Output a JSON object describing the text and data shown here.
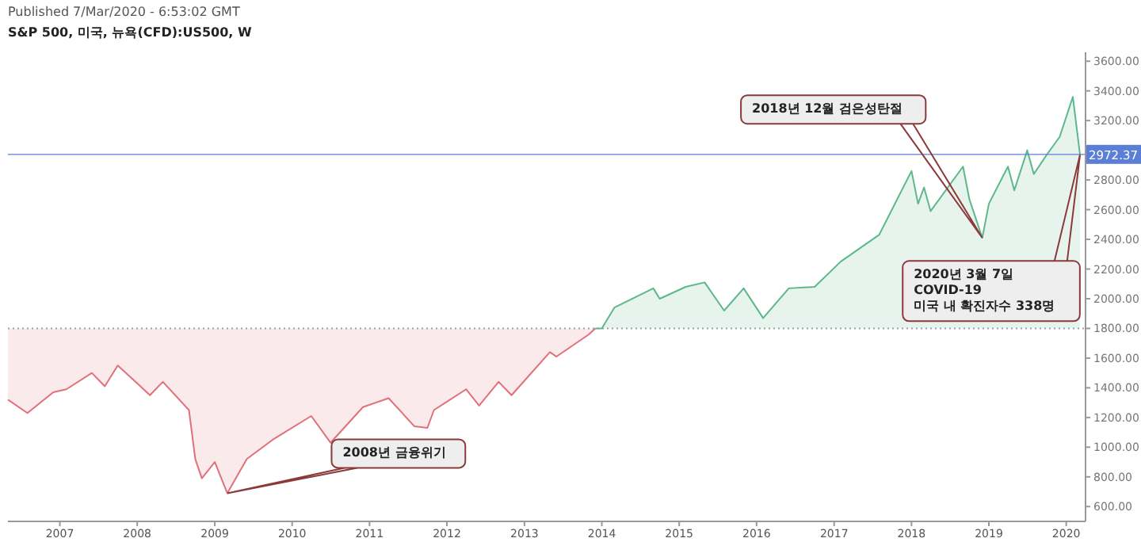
{
  "chart_data": {
    "type": "line",
    "title": "Published 7/Mar/2020 - 6:53:02 GMT",
    "subtitle": "S&P 500, 미국, 뉴욕(CFD):US500, W",
    "xlim": [
      "2006-05",
      "2020-04"
    ],
    "ylim": [
      500,
      3660
    ],
    "xticks": [
      "2007",
      "2008",
      "2009",
      "2010",
      "2011",
      "2012",
      "2013",
      "2014",
      "2015",
      "2016",
      "2017",
      "2018",
      "2019",
      "2020"
    ],
    "yticks": [
      {
        "value": 600,
        "label": "600.00"
      },
      {
        "value": 800,
        "label": "800.00"
      },
      {
        "value": 1000,
        "label": "1000.00"
      },
      {
        "value": 1200,
        "label": "1200.00"
      },
      {
        "value": 1400,
        "label": "1400.00"
      },
      {
        "value": 1600,
        "label": "1600.00"
      },
      {
        "value": 1800,
        "label": "1800.00"
      },
      {
        "value": 2000,
        "label": "2000.00"
      },
      {
        "value": 2200,
        "label": "2200.00"
      },
      {
        "value": 2400,
        "label": "2400.00"
      },
      {
        "value": 2600,
        "label": "2600.00"
      },
      {
        "value": 2800,
        "label": "2800.00"
      },
      {
        "value": 3200,
        "label": "3200.00"
      },
      {
        "value": 3400,
        "label": "3400.00"
      },
      {
        "value": 3600,
        "label": "3600.00"
      }
    ],
    "series": [
      {
        "color": "#e0707a",
        "x": [
          "2006-05",
          "2006-08",
          "2006-12",
          "2007-02",
          "2007-06",
          "2007-08",
          "2007-10",
          "2008-01",
          "2008-03",
          "2008-05",
          "2008-09",
          "2008-10",
          "2008-11",
          "2009-01",
          "2009-03",
          "2009-06",
          "2009-10",
          "2010-04",
          "2010-07",
          "2010-12",
          "2011-04",
          "2011-08",
          "2011-10",
          "2011-11",
          "2012-04",
          "2012-06",
          "2012-09",
          "2012-11",
          "2013-05",
          "2013-06",
          "2013-11",
          "2013-12"
        ],
        "values": [
          1320,
          1230,
          1370,
          1390,
          1500,
          1410,
          1550,
          1430,
          1350,
          1440,
          1250,
          920,
          790,
          900,
          690,
          920,
          1050,
          1210,
          1030,
          1270,
          1330,
          1140,
          1130,
          1250,
          1390,
          1280,
          1440,
          1350,
          1640,
          1610,
          1760,
          1800
        ]
      },
      {
        "color": "#5cb88a",
        "x": [
          "2013-12",
          "2014-01",
          "2014-03",
          "2014-09",
          "2014-10",
          "2015-02",
          "2015-05",
          "2015-08",
          "2015-11",
          "2016-02",
          "2016-06",
          "2016-10",
          "2017-02",
          "2017-08",
          "2018-01",
          "2018-02",
          "2018-03",
          "2018-04",
          "2018-09",
          "2018-10",
          "2018-12",
          "2019-01",
          "2019-04",
          "2019-05",
          "2019-07",
          "2019-08",
          "2019-10",
          "2019-12",
          "2020-02",
          "2020-03-06"
        ],
        "values": [
          1800,
          1800,
          1940,
          2070,
          2000,
          2080,
          2110,
          1920,
          2070,
          1870,
          2070,
          2080,
          2250,
          2430,
          2860,
          2640,
          2750,
          2590,
          2890,
          2670,
          2410,
          2640,
          2890,
          2730,
          3000,
          2840,
          2970,
          3090,
          3360,
          2970
        ]
      }
    ],
    "ref_lines": [
      {
        "axis": "y",
        "value": 1800,
        "label": null,
        "line_style": "dotted",
        "color": "#9aa0a6"
      },
      {
        "axis": "y",
        "value": 2972.37,
        "label": "2972.37",
        "line_style": "solid",
        "color": "#5b7fd6"
      }
    ],
    "annotations": [
      {
        "text": "2008년 금융위기",
        "x": "2009-03",
        "y": 690
      },
      {
        "text": "2018년 12월 검은성탄절",
        "x": "2018-12",
        "y": 2410
      },
      {
        "text": "2020년 3월 7일\nCOVID-19\n미국 내 확진자수 338명",
        "x": "2020-03-06",
        "y": 2970
      }
    ]
  }
}
